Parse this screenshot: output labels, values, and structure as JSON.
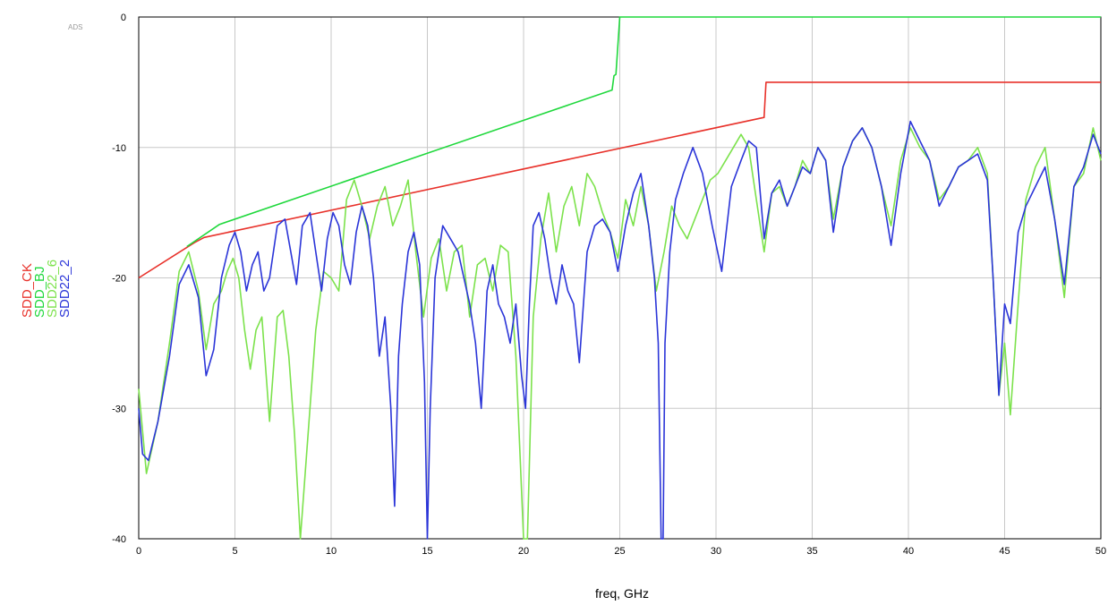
{
  "chart_data": {
    "type": "line",
    "watermark": "ADS",
    "xlabel": "freq, GHz",
    "ylabel": "",
    "xlim": [
      0,
      50
    ],
    "ylim": [
      -40,
      0
    ],
    "xticks": [
      0,
      5,
      10,
      15,
      20,
      25,
      30,
      35,
      40,
      45,
      50
    ],
    "yticks": [
      0,
      -10,
      -20,
      -30,
      -40
    ],
    "grid": true,
    "legend_position": "left, vertical",
    "series": [
      {
        "name": "SDD_CK",
        "color": "#e8312a",
        "x": [
          0,
          2.9,
          3.4,
          32.5,
          32.5,
          32.6,
          50
        ],
        "y": [
          -20,
          -17.3,
          -16.9,
          -7.7,
          -7.6,
          -5,
          -5
        ]
      },
      {
        "name": "SDD_BJ",
        "color": "#1fd83c",
        "x": [
          2.5,
          4.2,
          24.6,
          24.7,
          24.8,
          25.0,
          50
        ],
        "y": [
          -17.6,
          -15.9,
          -5.6,
          -4.5,
          -4.4,
          0,
          0
        ]
      },
      {
        "name": "SDD22_6",
        "color": "#7ce24c",
        "x": [
          0,
          0.4,
          1.0,
          1.6,
          2.1,
          2.6,
          3.1,
          3.5,
          3.9,
          4.3,
          4.6,
          4.9,
          5.2,
          5.5,
          5.8,
          6.1,
          6.4,
          6.8,
          7.2,
          7.5,
          7.8,
          8.1,
          8.4,
          8.8,
          9.2,
          9.6,
          10.0,
          10.4,
          10.8,
          11.2,
          11.6,
          12.0,
          12.4,
          12.8,
          13.2,
          13.6,
          14.0,
          14.4,
          14.8,
          15.2,
          15.6,
          16.0,
          16.4,
          16.8,
          17.2,
          17.6,
          18.0,
          18.4,
          18.8,
          19.2,
          19.6,
          20.0,
          20.2,
          20.5,
          20.9,
          21.3,
          21.7,
          22.1,
          22.5,
          22.9,
          23.3,
          23.7,
          24.1,
          24.5,
          24.9,
          25.3,
          25.7,
          26.1,
          26.5,
          26.9,
          27.3,
          27.7,
          28.1,
          28.5,
          28.9,
          29.3,
          29.7,
          30.1,
          30.5,
          30.9,
          31.3,
          31.7,
          32.1,
          32.5,
          32.9,
          33.3,
          33.7,
          34.1,
          34.5,
          34.9,
          35.3,
          35.7,
          36.1,
          36.6,
          37.1,
          37.6,
          38.1,
          38.6,
          39.1,
          39.6,
          40.1,
          40.6,
          41.1,
          41.6,
          42.1,
          42.6,
          43.1,
          43.6,
          44.1,
          44.4,
          44.7,
          45.0,
          45.3,
          45.7,
          46.1,
          46.6,
          47.1,
          47.6,
          48.1,
          48.6,
          49.1,
          49.6,
          50
        ],
        "y": [
          -28.5,
          -35,
          -31,
          -25,
          -19.5,
          -18,
          -21,
          -25.5,
          -22,
          -21,
          -19.5,
          -18.5,
          -20,
          -24,
          -27,
          -24,
          -23,
          -31,
          -23,
          -22.5,
          -26,
          -32,
          -40,
          -32,
          -24,
          -19.5,
          -20,
          -21,
          -14,
          -12.5,
          -14.5,
          -17,
          -14.5,
          -13,
          -16,
          -14.5,
          -12.5,
          -18,
          -23,
          -18.5,
          -17,
          -21,
          -18,
          -17.5,
          -23,
          -19,
          -18.5,
          -21,
          -17.5,
          -18,
          -26,
          -40,
          -40,
          -23,
          -17,
          -13.5,
          -18,
          -14.5,
          -13,
          -16,
          -12,
          -13,
          -15,
          -16.5,
          -18.5,
          -14,
          -16,
          -13,
          -16,
          -21,
          -18,
          -14.5,
          -16,
          -17,
          -15.5,
          -14,
          -12.5,
          -12,
          -11,
          -10,
          -9,
          -10,
          -14,
          -18,
          -13.5,
          -13,
          -14.5,
          -13,
          -11,
          -12,
          -10,
          -11,
          -15.5,
          -11.5,
          -9.5,
          -8.5,
          -10,
          -13,
          -16,
          -11,
          -8.5,
          -10,
          -11,
          -14,
          -13,
          -11.5,
          -11,
          -10,
          -12,
          -20,
          -29,
          -25,
          -30.5,
          -22,
          -14,
          -11.5,
          -10,
          -15.5,
          -21.5,
          -13,
          -12,
          -8.5,
          -11
        ]
      },
      {
        "name": "SDD22_2",
        "color": "#2b35d8",
        "x": [
          0,
          0.2,
          0.5,
          1.0,
          1.6,
          2.1,
          2.6,
          3.1,
          3.5,
          3.9,
          4.3,
          4.7,
          5.0,
          5.3,
          5.6,
          5.9,
          6.2,
          6.5,
          6.8,
          7.2,
          7.6,
          7.9,
          8.2,
          8.5,
          8.9,
          9.2,
          9.5,
          9.8,
          10.1,
          10.4,
          10.7,
          11.0,
          11.3,
          11.6,
          11.9,
          12.2,
          12.5,
          12.8,
          13.1,
          13.3,
          13.5,
          13.7,
          14.0,
          14.3,
          14.6,
          14.85,
          15.0,
          15.15,
          15.4,
          15.8,
          16.2,
          16.6,
          16.9,
          17.2,
          17.5,
          17.8,
          18.1,
          18.4,
          18.7,
          19.0,
          19.3,
          19.6,
          19.9,
          20.1,
          20.3,
          20.5,
          20.8,
          21.1,
          21.4,
          21.7,
          22.0,
          22.3,
          22.6,
          22.9,
          23.3,
          23.7,
          24.1,
          24.5,
          24.9,
          25.3,
          25.7,
          26.1,
          26.5,
          26.8,
          27.0,
          27.15,
          27.25,
          27.35,
          27.6,
          27.9,
          28.3,
          28.8,
          29.3,
          29.8,
          30.3,
          30.8,
          31.3,
          31.7,
          32.1,
          32.5,
          32.9,
          33.3,
          33.7,
          34.1,
          34.5,
          34.9,
          35.3,
          35.7,
          36.1,
          36.6,
          37.1,
          37.6,
          38.1,
          38.6,
          39.1,
          39.6,
          40.1,
          40.6,
          41.1,
          41.6,
          42.1,
          42.6,
          43.1,
          43.6,
          44.1,
          44.4,
          44.7,
          45.0,
          45.3,
          45.7,
          46.1,
          46.6,
          47.1,
          47.6,
          48.1,
          48.6,
          49.1,
          49.6,
          50
        ],
        "y": [
          -30,
          -33.5,
          -34,
          -31,
          -26,
          -20.5,
          -19,
          -21.5,
          -27.5,
          -25.5,
          -20,
          -17.5,
          -16.5,
          -18,
          -21,
          -19,
          -18,
          -21,
          -20,
          -16,
          -15.5,
          -18,
          -20.5,
          -16,
          -15,
          -18,
          -21,
          -17,
          -15,
          -16,
          -19,
          -20.5,
          -16.5,
          -14.5,
          -16,
          -20,
          -26,
          -23,
          -30,
          -37.5,
          -26,
          -22,
          -18,
          -16.5,
          -19,
          -28,
          -40,
          -30,
          -20,
          -16,
          -17,
          -18,
          -20,
          -22,
          -25,
          -30,
          -21,
          -19,
          -22,
          -23,
          -25,
          -22,
          -27.5,
          -30,
          -22,
          -16,
          -15,
          -17,
          -20,
          -22,
          -19,
          -21,
          -22,
          -26.5,
          -18,
          -16,
          -15.5,
          -16.5,
          -19.5,
          -16,
          -13.5,
          -12,
          -16,
          -20,
          -25,
          -40,
          -40,
          -25,
          -18,
          -14,
          -12,
          -10,
          -12,
          -16,
          -19.5,
          -13,
          -11,
          -9.5,
          -10,
          -17,
          -13.5,
          -12.5,
          -14.5,
          -13,
          -11.5,
          -12,
          -10,
          -11,
          -16.5,
          -11.5,
          -9.5,
          -8.5,
          -10,
          -13,
          -17.5,
          -12,
          -8,
          -9.5,
          -11,
          -14.5,
          -13,
          -11.5,
          -11,
          -10.5,
          -12.5,
          -20,
          -29,
          -22,
          -23.5,
          -16.5,
          -14.5,
          -13,
          -11.5,
          -15.5,
          -20.5,
          -13,
          -11.5,
          -9,
          -10.5
        ]
      }
    ]
  }
}
